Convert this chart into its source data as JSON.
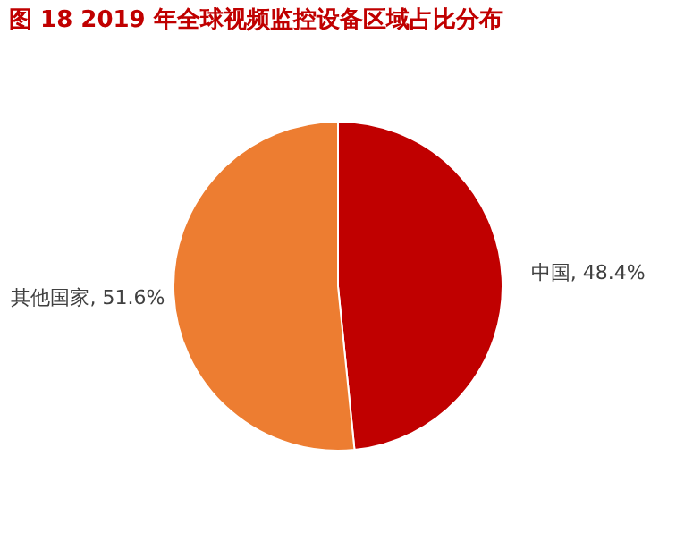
{
  "chart_data": {
    "type": "pie",
    "title": "图 18 2019 年全球视频监控设备区域占比分布",
    "categories": [
      "中国",
      "其他国家"
    ],
    "values": [
      48.4,
      51.6
    ],
    "colors": [
      "#c00000",
      "#ed7d31"
    ],
    "value_labels": [
      "48.4%",
      "51.6%"
    ],
    "legend": false
  }
}
